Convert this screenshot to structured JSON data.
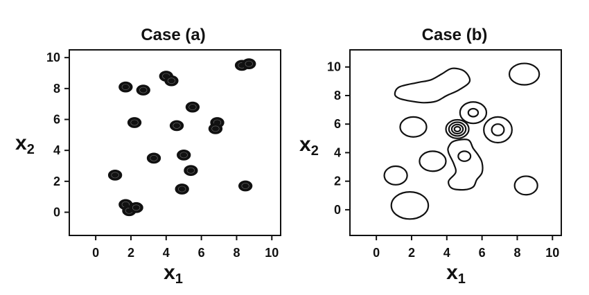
{
  "chart_data": [
    {
      "type": "contour",
      "title": "Case (a)",
      "xlabel": "x",
      "xlabel_sub": "1",
      "ylabel": "x",
      "ylabel_sub": "2",
      "xlim": [
        -1.5,
        10.5
      ],
      "ylim": [
        -1.5,
        10.5
      ],
      "xticks": [
        0,
        2,
        4,
        6,
        8,
        10
      ],
      "yticks": [
        0,
        2,
        4,
        6,
        8,
        10
      ],
      "grid": false,
      "centers": [
        {
          "x": 1.7,
          "y": 8.1
        },
        {
          "x": 2.7,
          "y": 7.9
        },
        {
          "x": 4.0,
          "y": 8.8
        },
        {
          "x": 4.3,
          "y": 8.5
        },
        {
          "x": 8.3,
          "y": 9.5
        },
        {
          "x": 8.7,
          "y": 9.6
        },
        {
          "x": 5.5,
          "y": 6.8
        },
        {
          "x": 2.2,
          "y": 5.8
        },
        {
          "x": 4.6,
          "y": 5.6
        },
        {
          "x": 6.9,
          "y": 5.8
        },
        {
          "x": 6.8,
          "y": 5.4
        },
        {
          "x": 3.3,
          "y": 3.5
        },
        {
          "x": 5.0,
          "y": 3.7
        },
        {
          "x": 5.4,
          "y": 2.7
        },
        {
          "x": 1.1,
          "y": 2.4
        },
        {
          "x": 4.9,
          "y": 1.5
        },
        {
          "x": 8.5,
          "y": 1.7
        },
        {
          "x": 1.7,
          "y": 0.5
        },
        {
          "x": 1.9,
          "y": 0.1
        },
        {
          "x": 2.3,
          "y": 0.3
        }
      ]
    },
    {
      "type": "contour",
      "title": "Case (b)",
      "xlabel": "x",
      "xlabel_sub": "1",
      "ylabel": "x",
      "ylabel_sub": "2",
      "xlim": [
        -1.5,
        10.5
      ],
      "ylim": [
        -1.8,
        11.2
      ],
      "xticks": [
        0,
        2,
        4,
        6,
        8,
        10
      ],
      "yticks": [
        0,
        2,
        4,
        6,
        8,
        10
      ],
      "grid": false,
      "ellipses": [
        {
          "x": 8.4,
          "y": 9.5,
          "rx": 0.85,
          "ry": 0.75
        },
        {
          "x": 2.1,
          "y": 5.8,
          "rx": 0.75,
          "ry": 0.7
        },
        {
          "x": 5.5,
          "y": 6.8,
          "rx": 0.75,
          "ry": 0.75
        },
        {
          "x": 5.5,
          "y": 6.8,
          "rx": 0.28,
          "ry": 0.28
        },
        {
          "x": 6.9,
          "y": 5.6,
          "rx": 0.8,
          "ry": 0.9
        },
        {
          "x": 6.9,
          "y": 5.6,
          "rx": 0.35,
          "ry": 0.4
        },
        {
          "x": 4.6,
          "y": 5.65,
          "rx": 0.65,
          "ry": 0.65
        },
        {
          "x": 4.6,
          "y": 5.65,
          "rx": 0.48,
          "ry": 0.48
        },
        {
          "x": 4.6,
          "y": 5.65,
          "rx": 0.32,
          "ry": 0.32
        },
        {
          "x": 4.6,
          "y": 5.65,
          "rx": 0.17,
          "ry": 0.17
        },
        {
          "x": 3.2,
          "y": 3.4,
          "rx": 0.75,
          "ry": 0.7
        },
        {
          "x": 5.0,
          "y": 3.75,
          "rx": 0.35,
          "ry": 0.35
        },
        {
          "x": 1.1,
          "y": 2.4,
          "rx": 0.65,
          "ry": 0.65
        },
        {
          "x": 8.5,
          "y": 1.7,
          "rx": 0.65,
          "ry": 0.65
        },
        {
          "x": 1.9,
          "y": 0.3,
          "rx": 1.05,
          "ry": 0.95
        }
      ],
      "loops": [
        [
          [
            1.05,
            8.1
          ],
          [
            1.3,
            8.6
          ],
          [
            2.3,
            8.9
          ],
          [
            3.1,
            9.1
          ],
          [
            3.7,
            9.5
          ],
          [
            4.3,
            9.9
          ],
          [
            5.0,
            9.7
          ],
          [
            5.3,
            9.0
          ],
          [
            4.7,
            8.4
          ],
          [
            4.0,
            8.0
          ],
          [
            3.4,
            7.6
          ],
          [
            2.7,
            7.5
          ],
          [
            2.0,
            7.6
          ],
          [
            1.3,
            7.8
          ]
        ],
        [
          [
            4.1,
            4.0
          ],
          [
            4.1,
            4.4
          ],
          [
            4.4,
            4.8
          ],
          [
            5.2,
            4.9
          ],
          [
            5.5,
            4.3
          ],
          [
            5.8,
            3.8
          ],
          [
            6.0,
            3.3
          ],
          [
            6.0,
            2.6
          ],
          [
            5.7,
            2.1
          ],
          [
            5.5,
            1.6
          ],
          [
            5.0,
            1.4
          ],
          [
            4.3,
            1.5
          ],
          [
            4.1,
            2.0
          ],
          [
            4.5,
            2.6
          ],
          [
            4.4,
            3.2
          ]
        ]
      ]
    }
  ]
}
